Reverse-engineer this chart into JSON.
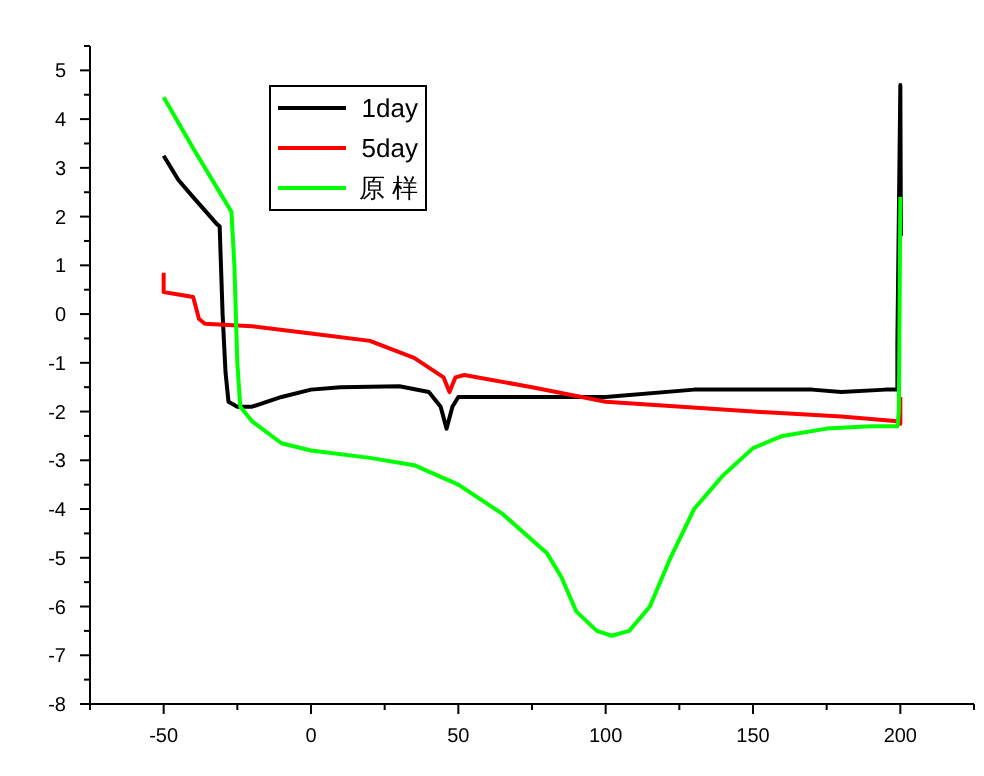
{
  "chart_data": {
    "type": "line",
    "xlim": [
      -75,
      225
    ],
    "xticks": [
      -50,
      0,
      50,
      100,
      150,
      200
    ],
    "ylim": [
      -8,
      5.5
    ],
    "yticks": [
      -8,
      -7,
      -6,
      -5,
      -4,
      -3,
      -2,
      -1,
      0,
      1,
      2,
      3,
      4,
      5
    ],
    "legend": "top left",
    "grid": false,
    "series": [
      {
        "name": "1day",
        "color": "#000000",
        "x": [
          -50,
          -45,
          -40,
          -32,
          -31,
          -30,
          -29,
          -28,
          -25,
          -20,
          -10,
          0,
          10,
          30,
          40,
          44,
          46,
          48,
          50,
          100,
          130,
          170,
          180,
          195,
          199,
          199,
          200,
          200.2
        ],
        "values": [
          3.25,
          2.75,
          2.4,
          1.85,
          1.8,
          0,
          -1.2,
          -1.8,
          -1.9,
          -1.9,
          -1.7,
          -1.55,
          -1.5,
          -1.48,
          -1.6,
          -1.9,
          -2.35,
          -1.9,
          -1.7,
          -1.7,
          -1.55,
          -1.55,
          -1.6,
          -1.55,
          -1.55,
          -0.6,
          4.7,
          1.6
        ]
      },
      {
        "name": "5day",
        "color": "#ff0000",
        "x": [
          -50,
          -50,
          -45,
          -40,
          -38,
          -36,
          -20,
          0,
          20,
          35,
          45,
          47,
          49,
          52,
          75,
          100,
          150,
          180,
          199,
          200,
          200
        ],
        "values": [
          0.85,
          0.45,
          0.4,
          0.35,
          -0.1,
          -0.2,
          -0.25,
          -0.4,
          -0.55,
          -0.9,
          -1.3,
          -1.6,
          -1.3,
          -1.25,
          -1.5,
          -1.8,
          -2.0,
          -2.1,
          -2.2,
          -2.25,
          -1.7
        ]
      },
      {
        "name": "原 样",
        "color": "#00ff00",
        "x": [
          -50,
          -40,
          -30,
          -27,
          -26,
          -25,
          -24,
          -20,
          -10,
          0,
          20,
          35,
          50,
          65,
          80,
          85,
          90,
          97,
          102,
          108,
          115,
          122,
          130,
          140,
          150,
          160,
          175,
          190,
          199,
          199.5,
          200
        ],
        "values": [
          4.45,
          3.4,
          2.4,
          2.1,
          1,
          -1,
          -1.9,
          -2.2,
          -2.65,
          -2.8,
          -2.95,
          -3.1,
          -3.5,
          -4.1,
          -4.9,
          -5.4,
          -6.1,
          -6.5,
          -6.6,
          -6.5,
          -6.0,
          -5.0,
          -4.0,
          -3.3,
          -2.75,
          -2.5,
          -2.35,
          -2.3,
          -2.3,
          -2.0,
          2.4
        ]
      }
    ]
  }
}
